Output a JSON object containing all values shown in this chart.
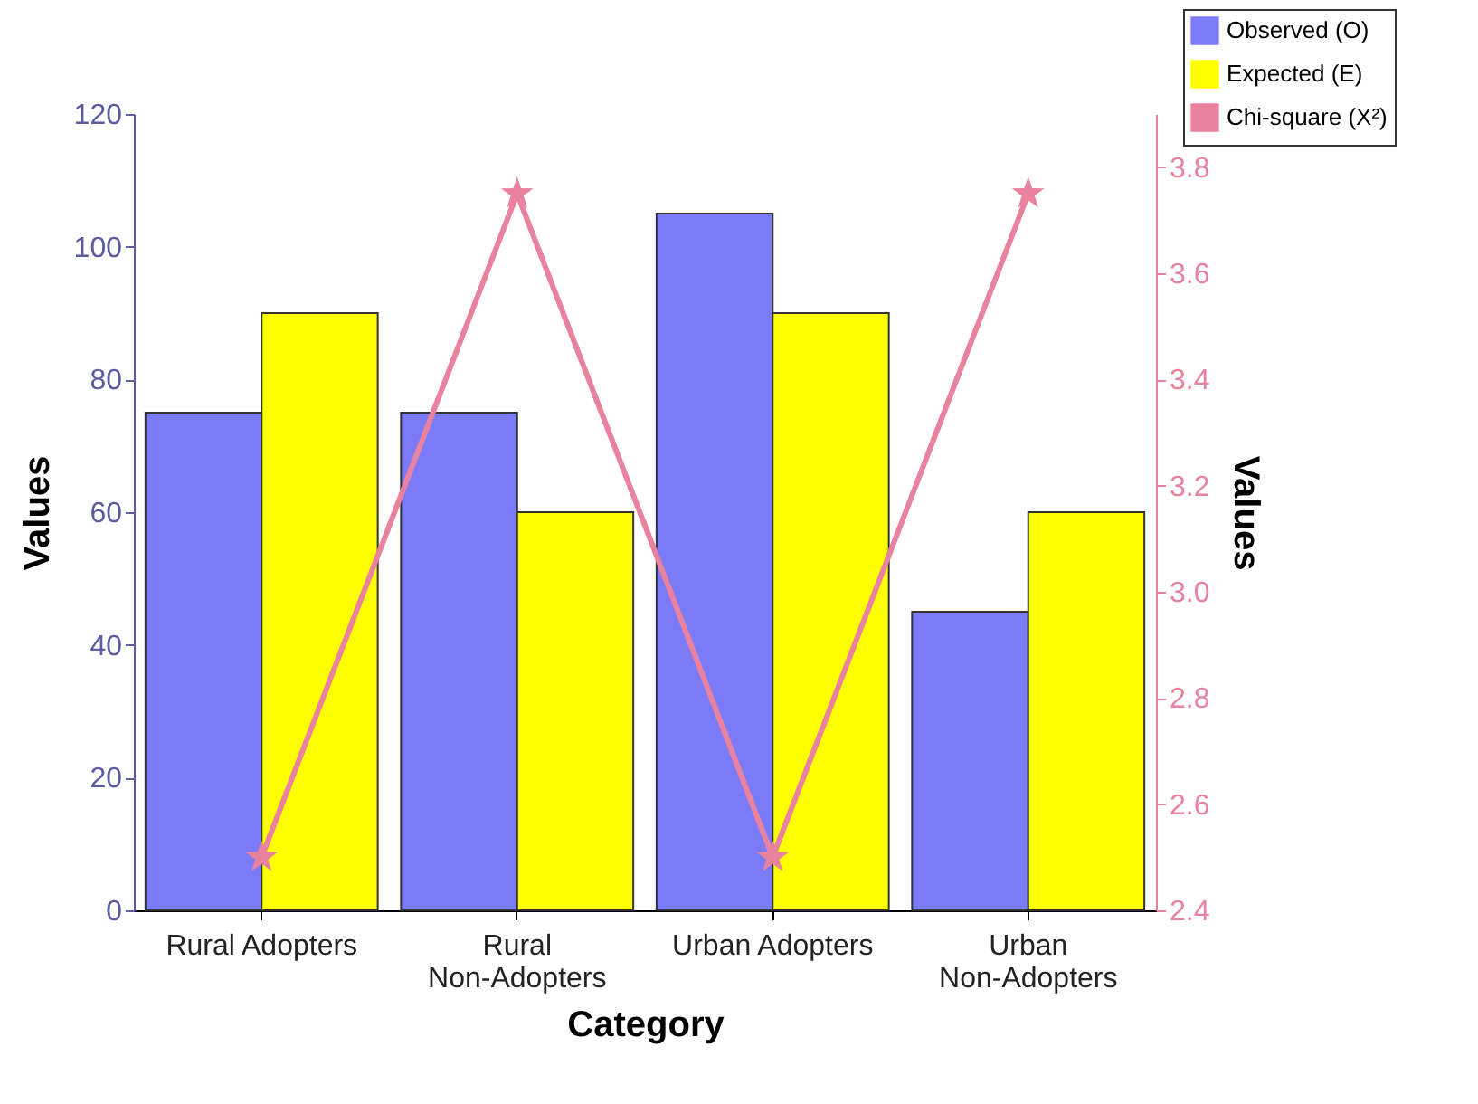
{
  "chart_data": {
    "type": "bar",
    "xlabel": "Category",
    "ylabel": "Values",
    "y2label": "Values",
    "categories": [
      "Rural Adopters",
      "Rural\nNon-Adopters",
      "Urban Adopters",
      "Urban\nNon-Adopters"
    ],
    "series": [
      {
        "name": "Observed (O)",
        "color": "#7b7bf7",
        "values": [
          75,
          75,
          105,
          45
        ]
      },
      {
        "name": "Expected (E)",
        "color": "#ffff00",
        "values": [
          90,
          60,
          90,
          60
        ]
      },
      {
        "name": "Chi-square (X²)",
        "type": "line",
        "axis": "y2",
        "color": "#e8829f",
        "marker": "star",
        "values": [
          2.5,
          3.75,
          2.5,
          3.75
        ]
      }
    ],
    "ylim": [
      0,
      120
    ],
    "yticks": [
      0,
      20,
      40,
      60,
      80,
      100,
      120
    ],
    "y2lim": [
      2.4,
      3.9
    ],
    "y2ticks": [
      2.4,
      2.6,
      2.8,
      {
        "value": 3.0,
        "label": "3.0"
      },
      3.2,
      3.4,
      3.6,
      3.8
    ],
    "grid": false,
    "legend": "top right"
  }
}
